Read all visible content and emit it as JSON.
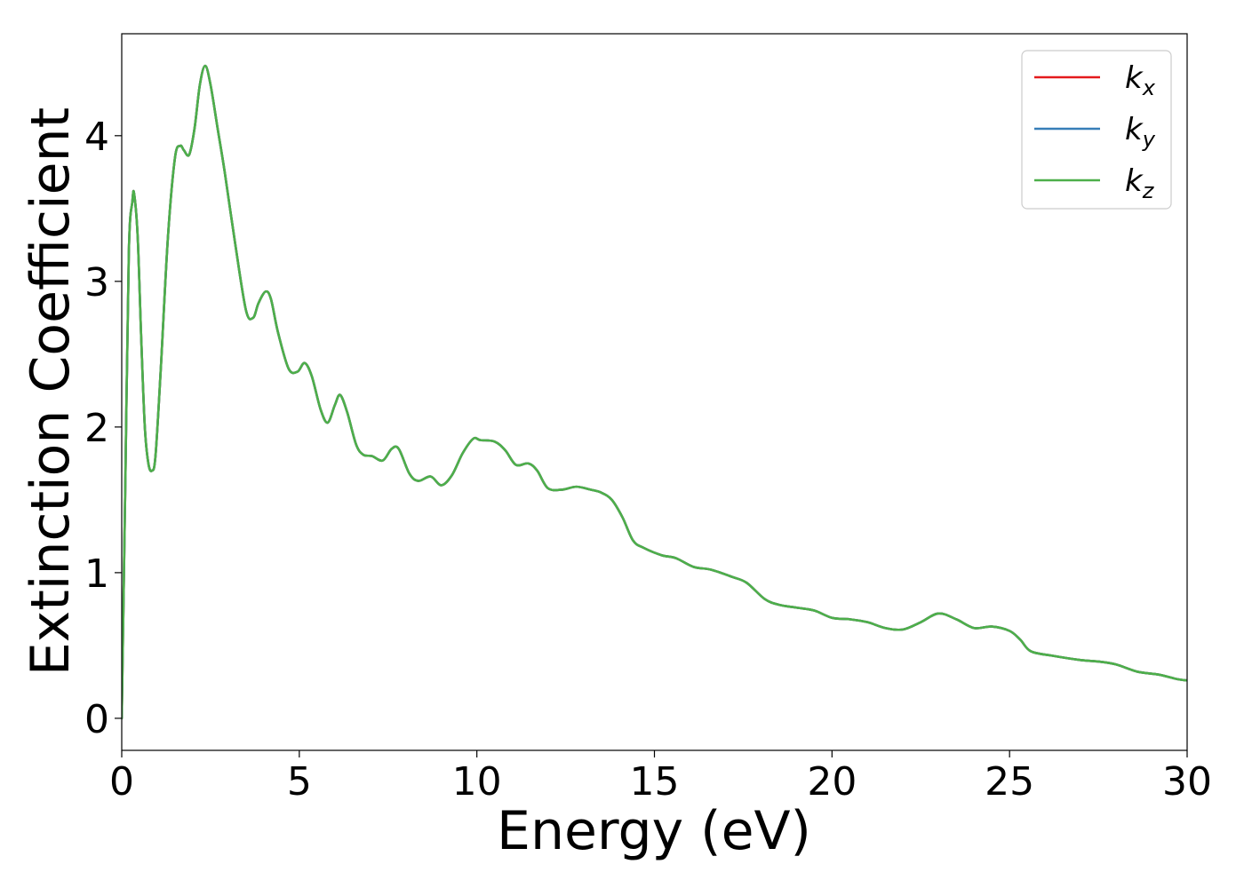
{
  "chart_data": {
    "type": "line",
    "title": "",
    "xlabel": "Energy (eV)",
    "ylabel": "Extinction Coefficient",
    "xlim": [
      0,
      30
    ],
    "ylim": [
      -0.22,
      4.7
    ],
    "xticks": [
      0,
      5,
      10,
      15,
      20,
      25,
      30
    ],
    "xtick_labels": [
      "0",
      "5",
      "10",
      "15",
      "20",
      "25",
      "30"
    ],
    "yticks": [
      0,
      1,
      2,
      3,
      4
    ],
    "ytick_labels": [
      "0",
      "1",
      "2",
      "3",
      "4"
    ],
    "grid": false,
    "legend_position": "top-right",
    "x": [
      0.0,
      0.1,
      0.2,
      0.3,
      0.35,
      0.45,
      0.55,
      0.65,
      0.75,
      0.85,
      0.95,
      1.1,
      1.3,
      1.5,
      1.65,
      1.75,
      1.9,
      2.05,
      2.2,
      2.35,
      2.5,
      2.7,
      2.9,
      3.2,
      3.5,
      3.7,
      3.85,
      4.05,
      4.2,
      4.4,
      4.7,
      4.95,
      5.15,
      5.35,
      5.6,
      5.8,
      6.0,
      6.15,
      6.35,
      6.6,
      6.8,
      7.05,
      7.35,
      7.6,
      7.8,
      8.1,
      8.35,
      8.7,
      9.0,
      9.3,
      9.6,
      9.9,
      10.1,
      10.5,
      10.8,
      11.1,
      11.45,
      11.7,
      12.0,
      12.4,
      12.8,
      13.2,
      13.5,
      13.8,
      14.1,
      14.4,
      14.7,
      15.2,
      15.6,
      16.1,
      16.6,
      17.2,
      17.6,
      18.1,
      18.5,
      19.0,
      19.5,
      20.0,
      20.5,
      21.0,
      21.5,
      22.0,
      22.5,
      23.0,
      23.5,
      24.0,
      24.5,
      25.0,
      25.3,
      25.6,
      26.2,
      27.0,
      27.5,
      28.0,
      28.6,
      29.2,
      29.7,
      30.0
    ],
    "series": [
      {
        "name": "k_x",
        "color": "#e41a1c",
        "values": [
          0.0,
          1.6,
          3.2,
          3.55,
          3.6,
          3.3,
          2.6,
          2.0,
          1.75,
          1.7,
          1.8,
          2.4,
          3.3,
          3.85,
          3.93,
          3.9,
          3.87,
          4.05,
          4.35,
          4.48,
          4.35,
          4.05,
          3.75,
          3.25,
          2.8,
          2.75,
          2.85,
          2.93,
          2.88,
          2.65,
          2.4,
          2.38,
          2.44,
          2.35,
          2.12,
          2.03,
          2.15,
          2.22,
          2.1,
          1.88,
          1.81,
          1.8,
          1.77,
          1.85,
          1.85,
          1.68,
          1.63,
          1.66,
          1.6,
          1.67,
          1.82,
          1.92,
          1.91,
          1.9,
          1.84,
          1.74,
          1.75,
          1.7,
          1.58,
          1.57,
          1.59,
          1.57,
          1.55,
          1.5,
          1.38,
          1.22,
          1.17,
          1.12,
          1.1,
          1.04,
          1.02,
          0.97,
          0.93,
          0.82,
          0.78,
          0.76,
          0.74,
          0.69,
          0.68,
          0.66,
          0.62,
          0.61,
          0.66,
          0.72,
          0.68,
          0.62,
          0.63,
          0.6,
          0.54,
          0.46,
          0.43,
          0.4,
          0.39,
          0.37,
          0.32,
          0.3,
          0.27,
          0.26
        ]
      },
      {
        "name": "k_y",
        "color": "#377eb8",
        "values": [
          0.0,
          1.6,
          3.2,
          3.55,
          3.6,
          3.3,
          2.6,
          2.0,
          1.75,
          1.7,
          1.8,
          2.4,
          3.3,
          3.85,
          3.93,
          3.9,
          3.87,
          4.05,
          4.35,
          4.48,
          4.35,
          4.05,
          3.75,
          3.25,
          2.8,
          2.75,
          2.85,
          2.93,
          2.88,
          2.65,
          2.4,
          2.38,
          2.44,
          2.35,
          2.12,
          2.03,
          2.15,
          2.22,
          2.1,
          1.88,
          1.81,
          1.8,
          1.77,
          1.85,
          1.85,
          1.68,
          1.63,
          1.66,
          1.6,
          1.67,
          1.82,
          1.92,
          1.91,
          1.9,
          1.84,
          1.74,
          1.75,
          1.7,
          1.58,
          1.57,
          1.59,
          1.57,
          1.55,
          1.5,
          1.38,
          1.22,
          1.17,
          1.12,
          1.1,
          1.04,
          1.02,
          0.97,
          0.93,
          0.82,
          0.78,
          0.76,
          0.74,
          0.69,
          0.68,
          0.66,
          0.62,
          0.61,
          0.66,
          0.72,
          0.68,
          0.62,
          0.63,
          0.6,
          0.54,
          0.46,
          0.43,
          0.4,
          0.39,
          0.37,
          0.32,
          0.3,
          0.27,
          0.26
        ]
      },
      {
        "name": "k_z",
        "color": "#4daf4a",
        "values": [
          0.0,
          1.6,
          3.2,
          3.55,
          3.6,
          3.3,
          2.6,
          2.0,
          1.75,
          1.7,
          1.8,
          2.4,
          3.3,
          3.85,
          3.93,
          3.9,
          3.87,
          4.05,
          4.35,
          4.48,
          4.35,
          4.05,
          3.75,
          3.25,
          2.8,
          2.75,
          2.85,
          2.93,
          2.88,
          2.65,
          2.4,
          2.38,
          2.44,
          2.35,
          2.12,
          2.03,
          2.15,
          2.22,
          2.1,
          1.88,
          1.81,
          1.8,
          1.77,
          1.85,
          1.85,
          1.68,
          1.63,
          1.66,
          1.6,
          1.67,
          1.82,
          1.92,
          1.91,
          1.9,
          1.84,
          1.74,
          1.75,
          1.7,
          1.58,
          1.57,
          1.59,
          1.57,
          1.55,
          1.5,
          1.38,
          1.22,
          1.17,
          1.12,
          1.1,
          1.04,
          1.02,
          0.97,
          0.93,
          0.82,
          0.78,
          0.76,
          0.74,
          0.69,
          0.68,
          0.66,
          0.62,
          0.61,
          0.66,
          0.72,
          0.68,
          0.62,
          0.63,
          0.6,
          0.54,
          0.46,
          0.43,
          0.4,
          0.39,
          0.37,
          0.32,
          0.3,
          0.27,
          0.26
        ]
      }
    ],
    "legend": [
      {
        "symbol": "k",
        "sub": "x",
        "color": "#e41a1c"
      },
      {
        "symbol": "k",
        "sub": "y",
        "color": "#377eb8"
      },
      {
        "symbol": "k",
        "sub": "z",
        "color": "#4daf4a"
      }
    ]
  }
}
